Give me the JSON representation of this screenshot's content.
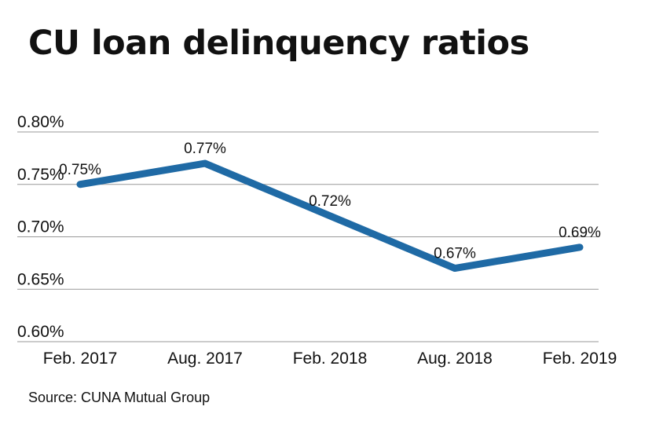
{
  "header": {
    "title": "CU loan delinquency ratios"
  },
  "footer": {
    "source": "Source: CUNA Mutual Group"
  },
  "chart_data": {
    "type": "line",
    "title": "CU loan delinquency ratios",
    "xlabel": "",
    "ylabel": "",
    "categories": [
      "Feb. 2017",
      "Aug. 2017",
      "Feb. 2018",
      "Aug. 2018",
      "Feb. 2019"
    ],
    "values": [
      0.75,
      0.77,
      0.72,
      0.67,
      0.69
    ],
    "data_labels": [
      "0.75%",
      "0.77%",
      "0.72%",
      "0.67%",
      "0.69%"
    ],
    "y_ticks": [
      0.8,
      0.75,
      0.7,
      0.65,
      0.6
    ],
    "y_tick_labels": [
      "0.80%",
      "0.75%",
      "0.70%",
      "0.65%",
      "0.60%"
    ],
    "ylim": [
      0.6,
      0.8
    ],
    "grid": true,
    "legend": "none",
    "line_color": "#1f6aa5",
    "grid_color": "#999999"
  }
}
